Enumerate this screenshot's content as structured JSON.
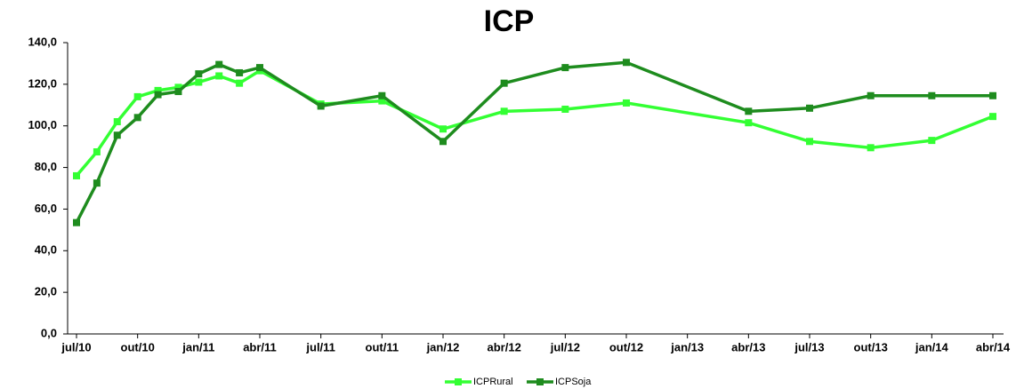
{
  "chart_data": {
    "type": "line",
    "title": "ICP",
    "x": [
      "2010-07",
      "2010-08",
      "2010-09",
      "2010-10",
      "2010-11",
      "2010-12",
      "2011-01",
      "2011-02",
      "2011-03",
      "2011-04",
      "2011-07",
      "2011-10",
      "2012-01",
      "2012-04",
      "2012-07",
      "2012-10",
      "2013-04",
      "2013-07",
      "2013-10",
      "2014-01",
      "2014-04"
    ],
    "series": [
      {
        "name": "ICPRural",
        "color": "#33ff33",
        "values": [
          76.0,
          87.5,
          102.0,
          114.0,
          117.0,
          118.5,
          121.0,
          124.0,
          120.5,
          126.5,
          110.5,
          112.0,
          98.5,
          107.0,
          108.0,
          111.0,
          101.5,
          92.5,
          89.5,
          93.0,
          104.5
        ]
      },
      {
        "name": "ICPSoja",
        "color": "#1e8c1e",
        "values": [
          53.5,
          72.5,
          95.5,
          104.0,
          115.0,
          116.5,
          125.0,
          129.5,
          125.5,
          128.0,
          109.5,
          114.5,
          92.5,
          120.5,
          128.0,
          130.5,
          107.0,
          108.5,
          114.5,
          114.5,
          114.5
        ]
      }
    ],
    "xlim": [
      "2010-07",
      "2014-04"
    ],
    "xticks": [
      {
        "value": "2010-07",
        "label": "jul/10"
      },
      {
        "value": "2010-10",
        "label": "out/10"
      },
      {
        "value": "2011-01",
        "label": "jan/11"
      },
      {
        "value": "2011-04",
        "label": "abr/11"
      },
      {
        "value": "2011-07",
        "label": "jul/11"
      },
      {
        "value": "2011-10",
        "label": "out/11"
      },
      {
        "value": "2012-01",
        "label": "jan/12"
      },
      {
        "value": "2012-04",
        "label": "abr/12"
      },
      {
        "value": "2012-07",
        "label": "jul/12"
      },
      {
        "value": "2012-10",
        "label": "out/12"
      },
      {
        "value": "2013-01",
        "label": "jan/13"
      },
      {
        "value": "2013-04",
        "label": "abr/13"
      },
      {
        "value": "2013-07",
        "label": "jul/13"
      },
      {
        "value": "2013-10",
        "label": "out/13"
      },
      {
        "value": "2014-01",
        "label": "jan/14"
      },
      {
        "value": "2014-04",
        "label": "abr/14"
      }
    ],
    "ylim": [
      0,
      140
    ],
    "yticks": [
      {
        "value": 0,
        "label": "0,0"
      },
      {
        "value": 20,
        "label": "20,0"
      },
      {
        "value": 40,
        "label": "40,0"
      },
      {
        "value": 60,
        "label": "60,0"
      },
      {
        "value": 80,
        "label": "80,0"
      },
      {
        "value": 100,
        "label": "100,0"
      },
      {
        "value": 120,
        "label": "120,0"
      },
      {
        "value": 140,
        "label": "140,0"
      }
    ],
    "grid": false,
    "legend": "bottom"
  }
}
